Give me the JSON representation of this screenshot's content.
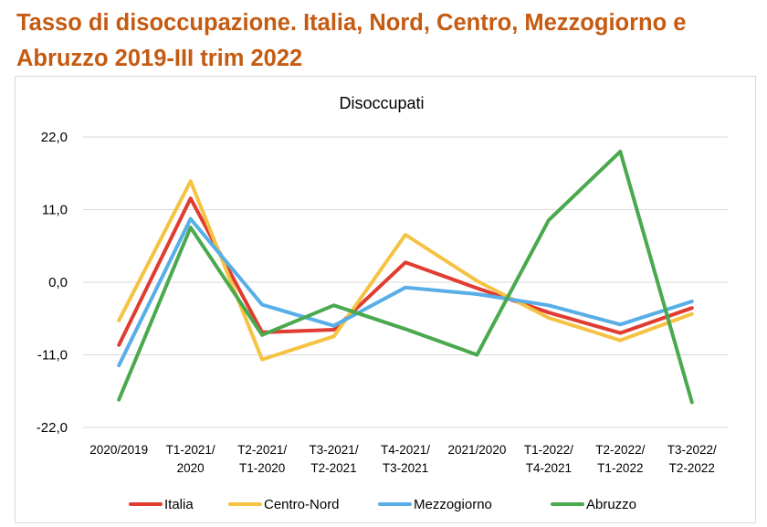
{
  "page": {
    "title": "Tasso di disoccupazione. Italia, Nord, Centro, Mezzogiorno e Abruzzo 2019-III trim 2022"
  },
  "chart_data": {
    "type": "line",
    "title": "Disoccupati",
    "xlabel": "",
    "ylabel": "",
    "ylim": [
      -22.0,
      22.0
    ],
    "yticks": [
      "22,0",
      "11,0",
      "0,0",
      "-11,0",
      "-22,0"
    ],
    "ytick_values": [
      22,
      11,
      0,
      -11,
      -22
    ],
    "grid": "horizontal",
    "legend_position": "bottom",
    "categories": [
      [
        "2020/2019"
      ],
      [
        "T1-2021/",
        "2020"
      ],
      [
        "T2-2021/",
        "T1-2020"
      ],
      [
        "T3-2021/",
        "T2-2021"
      ],
      [
        "T4-2021/",
        "T3-2021"
      ],
      [
        "2021/2020"
      ],
      [
        "T1-2022/",
        "T4-2021"
      ],
      [
        "T2-2022/",
        "T1-2022"
      ],
      [
        "T3-2022/",
        "T2-2022"
      ]
    ],
    "series": [
      {
        "name": "Italia",
        "color": "#e03c31",
        "values": [
          -9.5,
          12.7,
          -7.6,
          -7.2,
          3.0,
          -0.9,
          -4.6,
          -7.7,
          -3.9
        ]
      },
      {
        "name": "Centro-Nord",
        "color": "#f5c242",
        "values": [
          -5.8,
          15.3,
          -11.7,
          -8.2,
          7.2,
          0.2,
          -5.4,
          -8.8,
          -4.8
        ]
      },
      {
        "name": "Mezzogiorno",
        "color": "#58aee6",
        "values": [
          -12.6,
          9.6,
          -3.4,
          -6.6,
          -0.8,
          -1.8,
          -3.5,
          -6.4,
          -2.9
        ]
      },
      {
        "name": "Abruzzo",
        "color": "#4aa94e",
        "values": [
          -17.8,
          8.3,
          -8.0,
          -3.5,
          -7.1,
          -11.0,
          9.4,
          19.8,
          -18.2
        ]
      }
    ]
  }
}
